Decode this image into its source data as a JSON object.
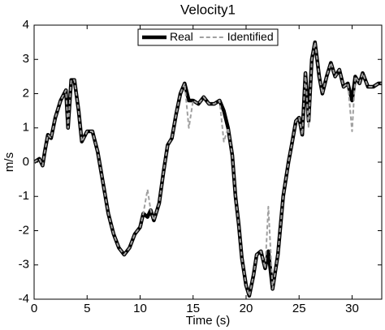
{
  "chart_data": {
    "type": "line",
    "title": "Velocity1",
    "x_label": "Time (s)",
    "y_label": "m/s",
    "x": [
      0,
      0.5,
      0.8,
      1.0,
      1.3,
      1.6,
      2.0,
      2.5,
      3.0,
      3.2,
      3.5,
      3.8,
      4.2,
      4.5,
      5.0,
      5.5,
      6.0,
      6.5,
      7.0,
      7.5,
      8.0,
      8.5,
      9.0,
      9.5,
      10.0,
      10.3,
      10.7,
      11.0,
      11.3,
      11.8,
      12.2,
      12.6,
      13.0,
      13.4,
      13.8,
      14.2,
      14.6,
      15.0,
      15.5,
      16.0,
      16.5,
      17.0,
      17.5,
      17.9,
      18.3,
      18.7,
      19.0,
      19.3,
      19.6,
      20.0,
      20.3,
      20.7,
      21.0,
      21.4,
      21.8,
      22.1,
      22.5,
      23.0,
      23.5,
      24.0,
      24.3,
      24.7,
      25.0,
      25.3,
      25.6,
      25.9,
      26.2,
      26.5,
      26.9,
      27.2,
      27.6,
      28.0,
      28.4,
      28.8,
      29.2,
      29.6,
      30.0,
      30.3,
      30.7,
      31.0,
      31.5,
      32.0,
      32.5,
      32.8
    ],
    "series": [
      {
        "name": "Real",
        "color": "#000000",
        "values": [
          0,
          0.1,
          -0.1,
          0.3,
          0.8,
          0.7,
          1.3,
          1.8,
          2.1,
          1.0,
          2.4,
          2.4,
          1.5,
          0.6,
          0.9,
          0.9,
          0.3,
          -0.6,
          -1.5,
          -2.1,
          -2.5,
          -2.7,
          -2.5,
          -2.1,
          -1.9,
          -1.5,
          -1.6,
          -1.4,
          -1.7,
          -1.2,
          -0.3,
          0.5,
          0.7,
          1.4,
          2.0,
          2.3,
          1.8,
          1.8,
          1.7,
          1.9,
          1.7,
          1.7,
          1.8,
          1.5,
          1.0,
          0.2,
          -1.0,
          -1.8,
          -2.8,
          -3.6,
          -3.9,
          -3.3,
          -2.7,
          -2.6,
          -3.1,
          -2.6,
          -3.7,
          -2.7,
          -1.0,
          0.0,
          0.5,
          1.2,
          1.3,
          0.8,
          2.6,
          1.2,
          3.0,
          3.5,
          2.5,
          2.0,
          2.5,
          2.9,
          2.5,
          2.7,
          2.2,
          2.3,
          1.8,
          2.5,
          2.3,
          2.6,
          2.2,
          2.2,
          2.3,
          2.3
        ]
      },
      {
        "name": "Identified",
        "color": "#a0a0a0",
        "values": [
          0,
          0.1,
          -0.1,
          0.3,
          0.8,
          0.7,
          1.3,
          1.8,
          2.1,
          1.0,
          2.4,
          2.4,
          1.5,
          0.6,
          0.9,
          0.9,
          0.3,
          -0.6,
          -1.5,
          -2.1,
          -2.5,
          -2.7,
          -2.5,
          -2.1,
          -1.9,
          -1.5,
          -0.8,
          -1.4,
          -1.7,
          -1.2,
          -0.3,
          0.5,
          0.7,
          1.4,
          2.0,
          2.3,
          1.0,
          1.8,
          1.7,
          1.9,
          1.7,
          1.7,
          1.8,
          0.6,
          1.0,
          0.2,
          -1.0,
          -1.8,
          -2.8,
          -3.6,
          -3.9,
          -3.3,
          -2.7,
          -2.6,
          -3.1,
          -1.3,
          -3.7,
          -2.7,
          -1.0,
          0.0,
          0.5,
          1.2,
          1.3,
          0.8,
          2.6,
          1.0,
          3.0,
          3.5,
          2.5,
          2.0,
          2.5,
          2.9,
          2.5,
          2.7,
          2.2,
          2.3,
          0.9,
          2.5,
          2.3,
          2.6,
          2.2,
          2.2,
          2.3,
          2.3
        ]
      }
    ],
    "xlim": [
      0,
      32.8
    ],
    "xticks": [
      0,
      5,
      10,
      15,
      20,
      25,
      30
    ],
    "ylim": [
      -4,
      4
    ],
    "yticks": [
      -4,
      -3,
      -2,
      -1,
      0,
      1,
      2,
      3,
      4
    ],
    "legend": "top"
  }
}
